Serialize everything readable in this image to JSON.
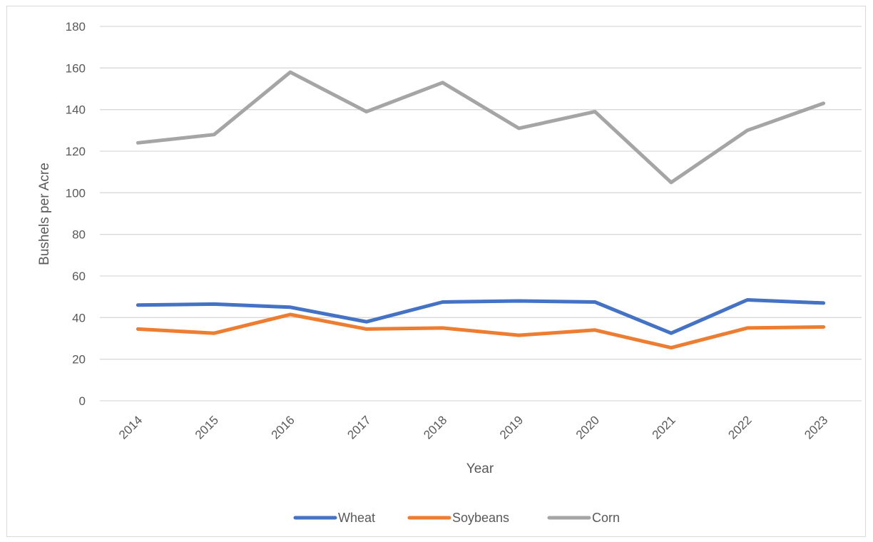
{
  "chart_data": {
    "type": "line",
    "title": "",
    "xlabel": "Year",
    "ylabel": "Bushels per Acre",
    "ylim": [
      0,
      180
    ],
    "yticks": [
      0,
      20,
      40,
      60,
      80,
      100,
      120,
      140,
      160,
      180
    ],
    "categories": [
      "2014",
      "2015",
      "2016",
      "2017",
      "2018",
      "2019",
      "2020",
      "2021",
      "2022",
      "2023"
    ],
    "grid": true,
    "legend_position": "bottom",
    "series": [
      {
        "name": "Wheat",
        "color": "#4472c4",
        "values": [
          46,
          46.5,
          45,
          38,
          47.5,
          48,
          47.5,
          32.5,
          48.5,
          47
        ]
      },
      {
        "name": "Soybeans",
        "color": "#ed7d31",
        "values": [
          34.5,
          32.5,
          41.5,
          34.5,
          35,
          31.5,
          34,
          25.5,
          35,
          35.5
        ]
      },
      {
        "name": "Corn",
        "color": "#a5a5a5",
        "values": [
          124,
          128,
          158,
          139,
          153,
          131,
          139,
          105,
          130,
          143
        ]
      }
    ]
  }
}
